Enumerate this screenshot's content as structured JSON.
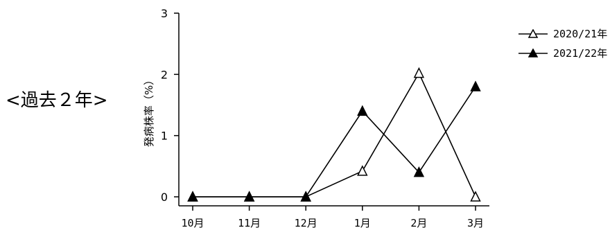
{
  "side_label": "<過去２年>",
  "chart_data": {
    "type": "line",
    "categories": [
      "10月",
      "11月",
      "12月",
      "1月",
      "2月",
      "3月"
    ],
    "ylabel": "発病株率（%）",
    "xlabel": "",
    "ylim": [
      0,
      3
    ],
    "yticks": [
      "0",
      "1",
      "2",
      "3"
    ],
    "grid": false,
    "legend_position": "top-right",
    "series": [
      {
        "name": "2020/21年",
        "marker": "open-triangle",
        "color": "#000000",
        "values": [
          0,
          0,
          0,
          0.42,
          2.02,
          0
        ]
      },
      {
        "name": "2021/22年",
        "marker": "filled-triangle",
        "color": "#000000",
        "values": [
          0,
          0,
          0,
          1.4,
          0.4,
          1.8
        ]
      }
    ]
  }
}
